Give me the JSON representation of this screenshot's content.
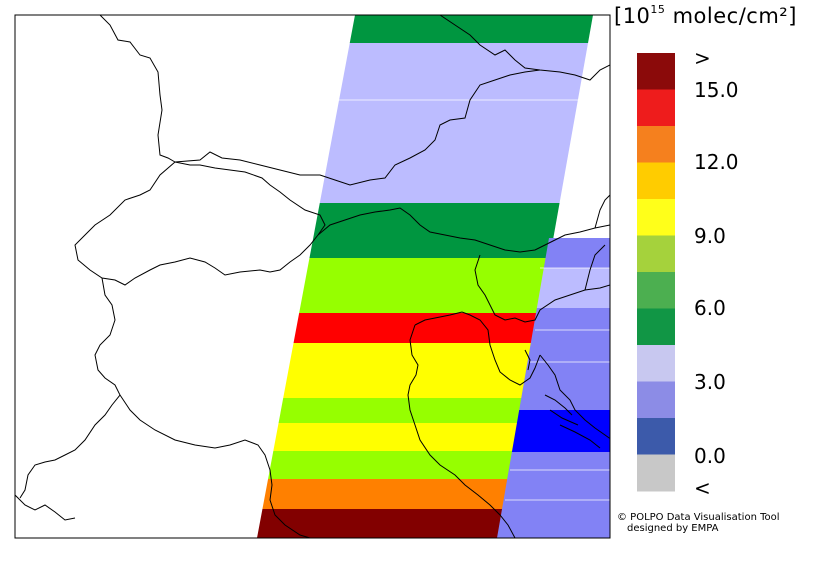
{
  "legend": {
    "unit_prefix": "[10",
    "unit_exponent": "15",
    "unit_suffix": " molec/cm²]",
    "colors": [
      "#8b0a0a",
      "#ee1c1c",
      "#f5801e",
      "#ffcc00",
      "#ffff1a",
      "#a5d23c",
      "#4caf50",
      "#119645",
      "#c8c8f0",
      "#8c8ce6",
      "#3c5aaa",
      "#c8c8c8"
    ],
    "tick_labels": [
      ">",
      "15.0",
      "12.0",
      "9.0",
      "6.0",
      "3.0",
      "0.0",
      "<"
    ]
  },
  "credits": {
    "line1": "© POLPO Data Visualisation Tool",
    "line2": "designed by EMPA"
  },
  "map_colors": {
    "lavender": "#bcbcff",
    "periwinkle": "#8282f5",
    "blue": "#0000ff",
    "dark_green": "#009640",
    "lime": "#96ff00",
    "yellow": "#ffff00",
    "red": "#ff0000",
    "orange": "#ff8000",
    "dark_red": "#820000"
  }
}
